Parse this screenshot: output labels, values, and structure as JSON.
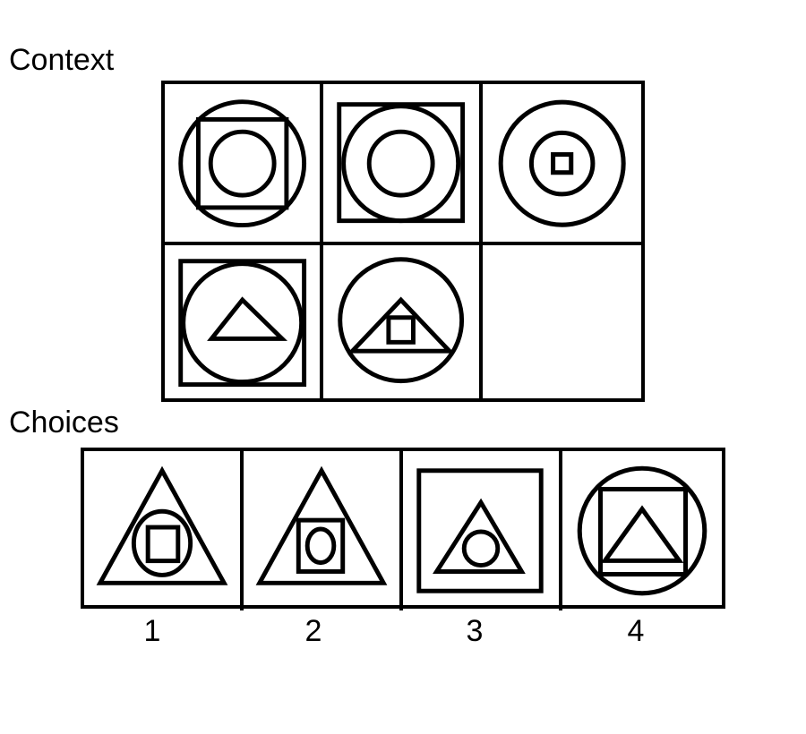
{
  "context": {
    "label": "Context",
    "cells": [
      {
        "shapes": [
          "circle",
          "square",
          "circle"
        ]
      },
      {
        "shapes": [
          "square",
          "circle",
          "circle"
        ]
      },
      {
        "shapes": [
          "circle",
          "circle",
          "square"
        ]
      },
      {
        "shapes": [
          "square",
          "circle",
          "triangle"
        ]
      },
      {
        "shapes": [
          "circle",
          "triangle",
          "square"
        ]
      },
      {
        "shapes": []
      }
    ]
  },
  "choices": {
    "label": "Choices",
    "items": [
      {
        "number": "1",
        "shapes": [
          "triangle",
          "circle",
          "square"
        ]
      },
      {
        "number": "2",
        "shapes": [
          "triangle",
          "square",
          "circle"
        ]
      },
      {
        "number": "3",
        "shapes": [
          "square",
          "triangle",
          "circle"
        ]
      },
      {
        "number": "4",
        "shapes": [
          "circle",
          "square",
          "triangle"
        ]
      }
    ]
  }
}
